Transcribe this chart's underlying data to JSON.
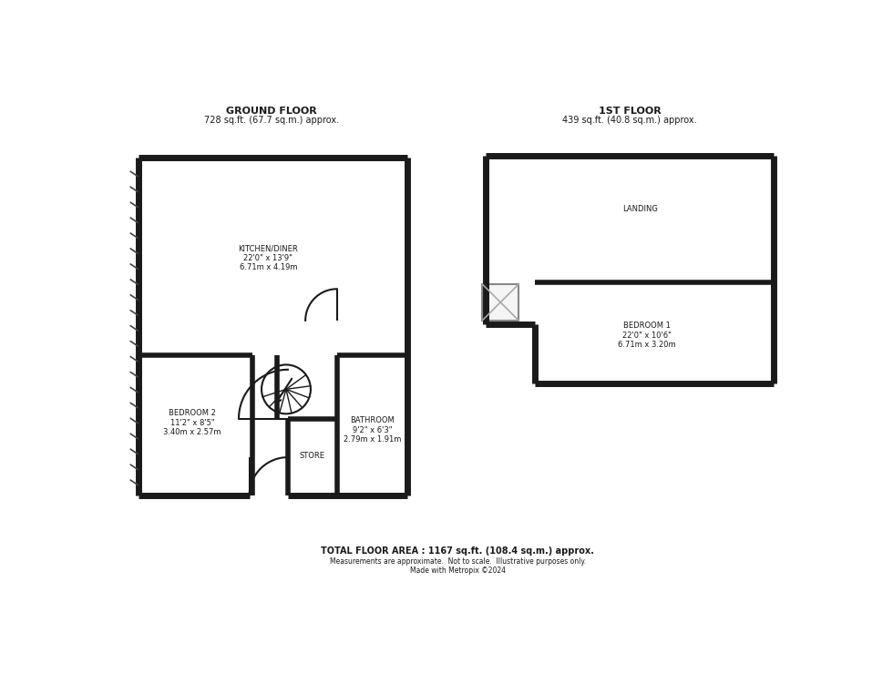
{
  "bg_color": "#ffffff",
  "wall_color": "#1a1a1a",
  "wall_lw": 5,
  "inner_wall_lw": 4,
  "thin_wall_lw": 1.5,
  "ground_floor_title": "GROUND FLOOR",
  "ground_floor_subtitle": "728 sq.ft. (67.7 sq.m.) approx.",
  "first_floor_title": "1ST FLOOR",
  "first_floor_subtitle": "439 sq.ft. (40.8 sq.m.) approx.",
  "footer_line1": "TOTAL FLOOR AREA : 1167 sq.ft. (108.4 sq.m.) approx.",
  "footer_line2": "Measurements are approximate.  Not to scale.  Illustrative purposes only.",
  "footer_line3": "Made with Metropix ©2024",
  "kitchen_label": "KITCHEN/DINER\n22'0\" x 13'9\"\n6.71m x 4.19m",
  "bedroom2_label": "BEDROOM 2\n11'2\" x 8'5\"\n3.40m x 2.57m",
  "bathroom_label": "BATHROOM\n9'2\" x 6'3\"\n2.79m x 1.91m",
  "store_label": "STORE",
  "landing_label": "LANDING",
  "bedroom1_label": "BEDROOM 1\n22'0\" x 10'6\"\n6.71m x 3.20m"
}
